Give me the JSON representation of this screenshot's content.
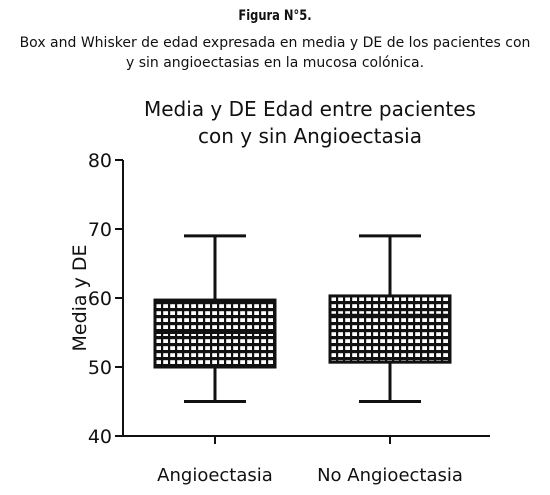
{
  "figure": {
    "label": "Figura N°5.",
    "caption_line1": "Box and Whisker de edad expresada en media y DE de los pacientes con",
    "caption_line2": "y sin angioectasias en la mucosa colónica."
  },
  "chart_data": {
    "type": "box",
    "title_line1": "Media y DE Edad entre pacientes",
    "title_line2": "con y sin Angioectasia",
    "ylabel": "Media y DE",
    "xlabel": "",
    "ylim": [
      40,
      80
    ],
    "yticks": [
      40,
      50,
      60,
      70,
      80
    ],
    "grid": false,
    "categories": [
      "Angioectasia",
      "No Angioectasia"
    ],
    "boxes": [
      {
        "category": "Angioectasia",
        "whisker_low": 45,
        "q1": 50,
        "median": 55,
        "q3": 59.7,
        "whisker_high": 69
      },
      {
        "category": "No Angioectasia",
        "whisker_low": 45,
        "q1": 50.7,
        "median": 57.5,
        "q3": 60.3,
        "whisker_high": 69
      }
    ],
    "box_fill": "cross-hatched black"
  }
}
